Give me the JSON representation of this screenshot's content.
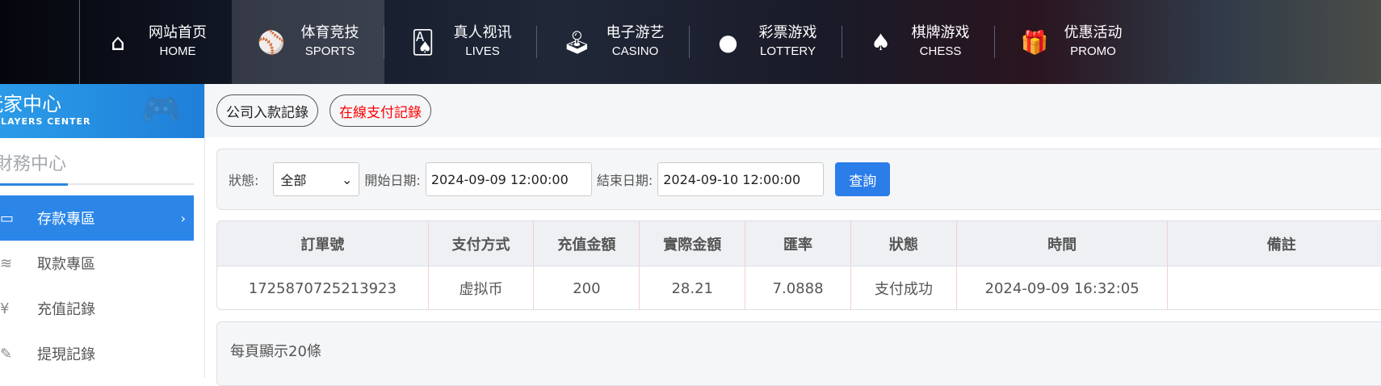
{
  "nav": [
    {
      "cn": "网站首页",
      "en": "HOME",
      "icon": "home-icon",
      "glyph": "⌂"
    },
    {
      "cn": "体育竞技",
      "en": "SPORTS",
      "icon": "ball-icon",
      "glyph": "⚾"
    },
    {
      "cn": "真人视讯",
      "en": "LIVES",
      "icon": "cards-icon",
      "glyph": "🂡"
    },
    {
      "cn": "电子游艺",
      "en": "CASINO",
      "icon": "joystick-icon",
      "glyph": "🕹"
    },
    {
      "cn": "彩票游戏",
      "en": "LOTTERY",
      "icon": "lottery-balls-icon",
      "glyph": "●"
    },
    {
      "cn": "棋牌游戏",
      "en": "CHESS",
      "icon": "spade-icon",
      "glyph": "♠"
    },
    {
      "cn": "优惠活动",
      "en": "PROMO",
      "icon": "gift-icon",
      "glyph": "🎁"
    }
  ],
  "sidebar": {
    "banner_cn": "玩家中心",
    "banner_en": "PLAYERS CENTER",
    "section_title": "財務中心",
    "items": [
      {
        "label": "存款專區",
        "icon": "card-icon",
        "glyph": "▭",
        "active": true
      },
      {
        "label": "取款專區",
        "icon": "hand-money-icon",
        "glyph": "≋"
      },
      {
        "label": "充值記錄",
        "icon": "money-bag-icon",
        "glyph": "¥"
      },
      {
        "label": "提現記錄",
        "icon": "pen-icon",
        "glyph": "✎"
      }
    ]
  },
  "tabs": [
    "公司入款記錄",
    "在線支付記錄"
  ],
  "filter": {
    "status_label": "狀態:",
    "status_value": "全部",
    "start_label": "開始日期:",
    "start_value": "2024-09-09 12:00:00",
    "end_label": "結束日期:",
    "end_value": "2024-09-10 12:00:00",
    "query": "查詢"
  },
  "table": {
    "headers": [
      "訂單號",
      "支付方式",
      "充值金額",
      "實際金額",
      "匯率",
      "狀態",
      "時間",
      "備註"
    ],
    "rows": [
      [
        "1725870725213923",
        "虚拟币",
        "200",
        "28.21",
        "7.0888",
        "支付成功",
        "2024-09-09 16:32:05",
        ""
      ]
    ]
  },
  "pager": {
    "per_page": "每頁顯示20條"
  },
  "colors": {
    "accent": "#2b86e8",
    "active_tab": "#ff0000"
  }
}
